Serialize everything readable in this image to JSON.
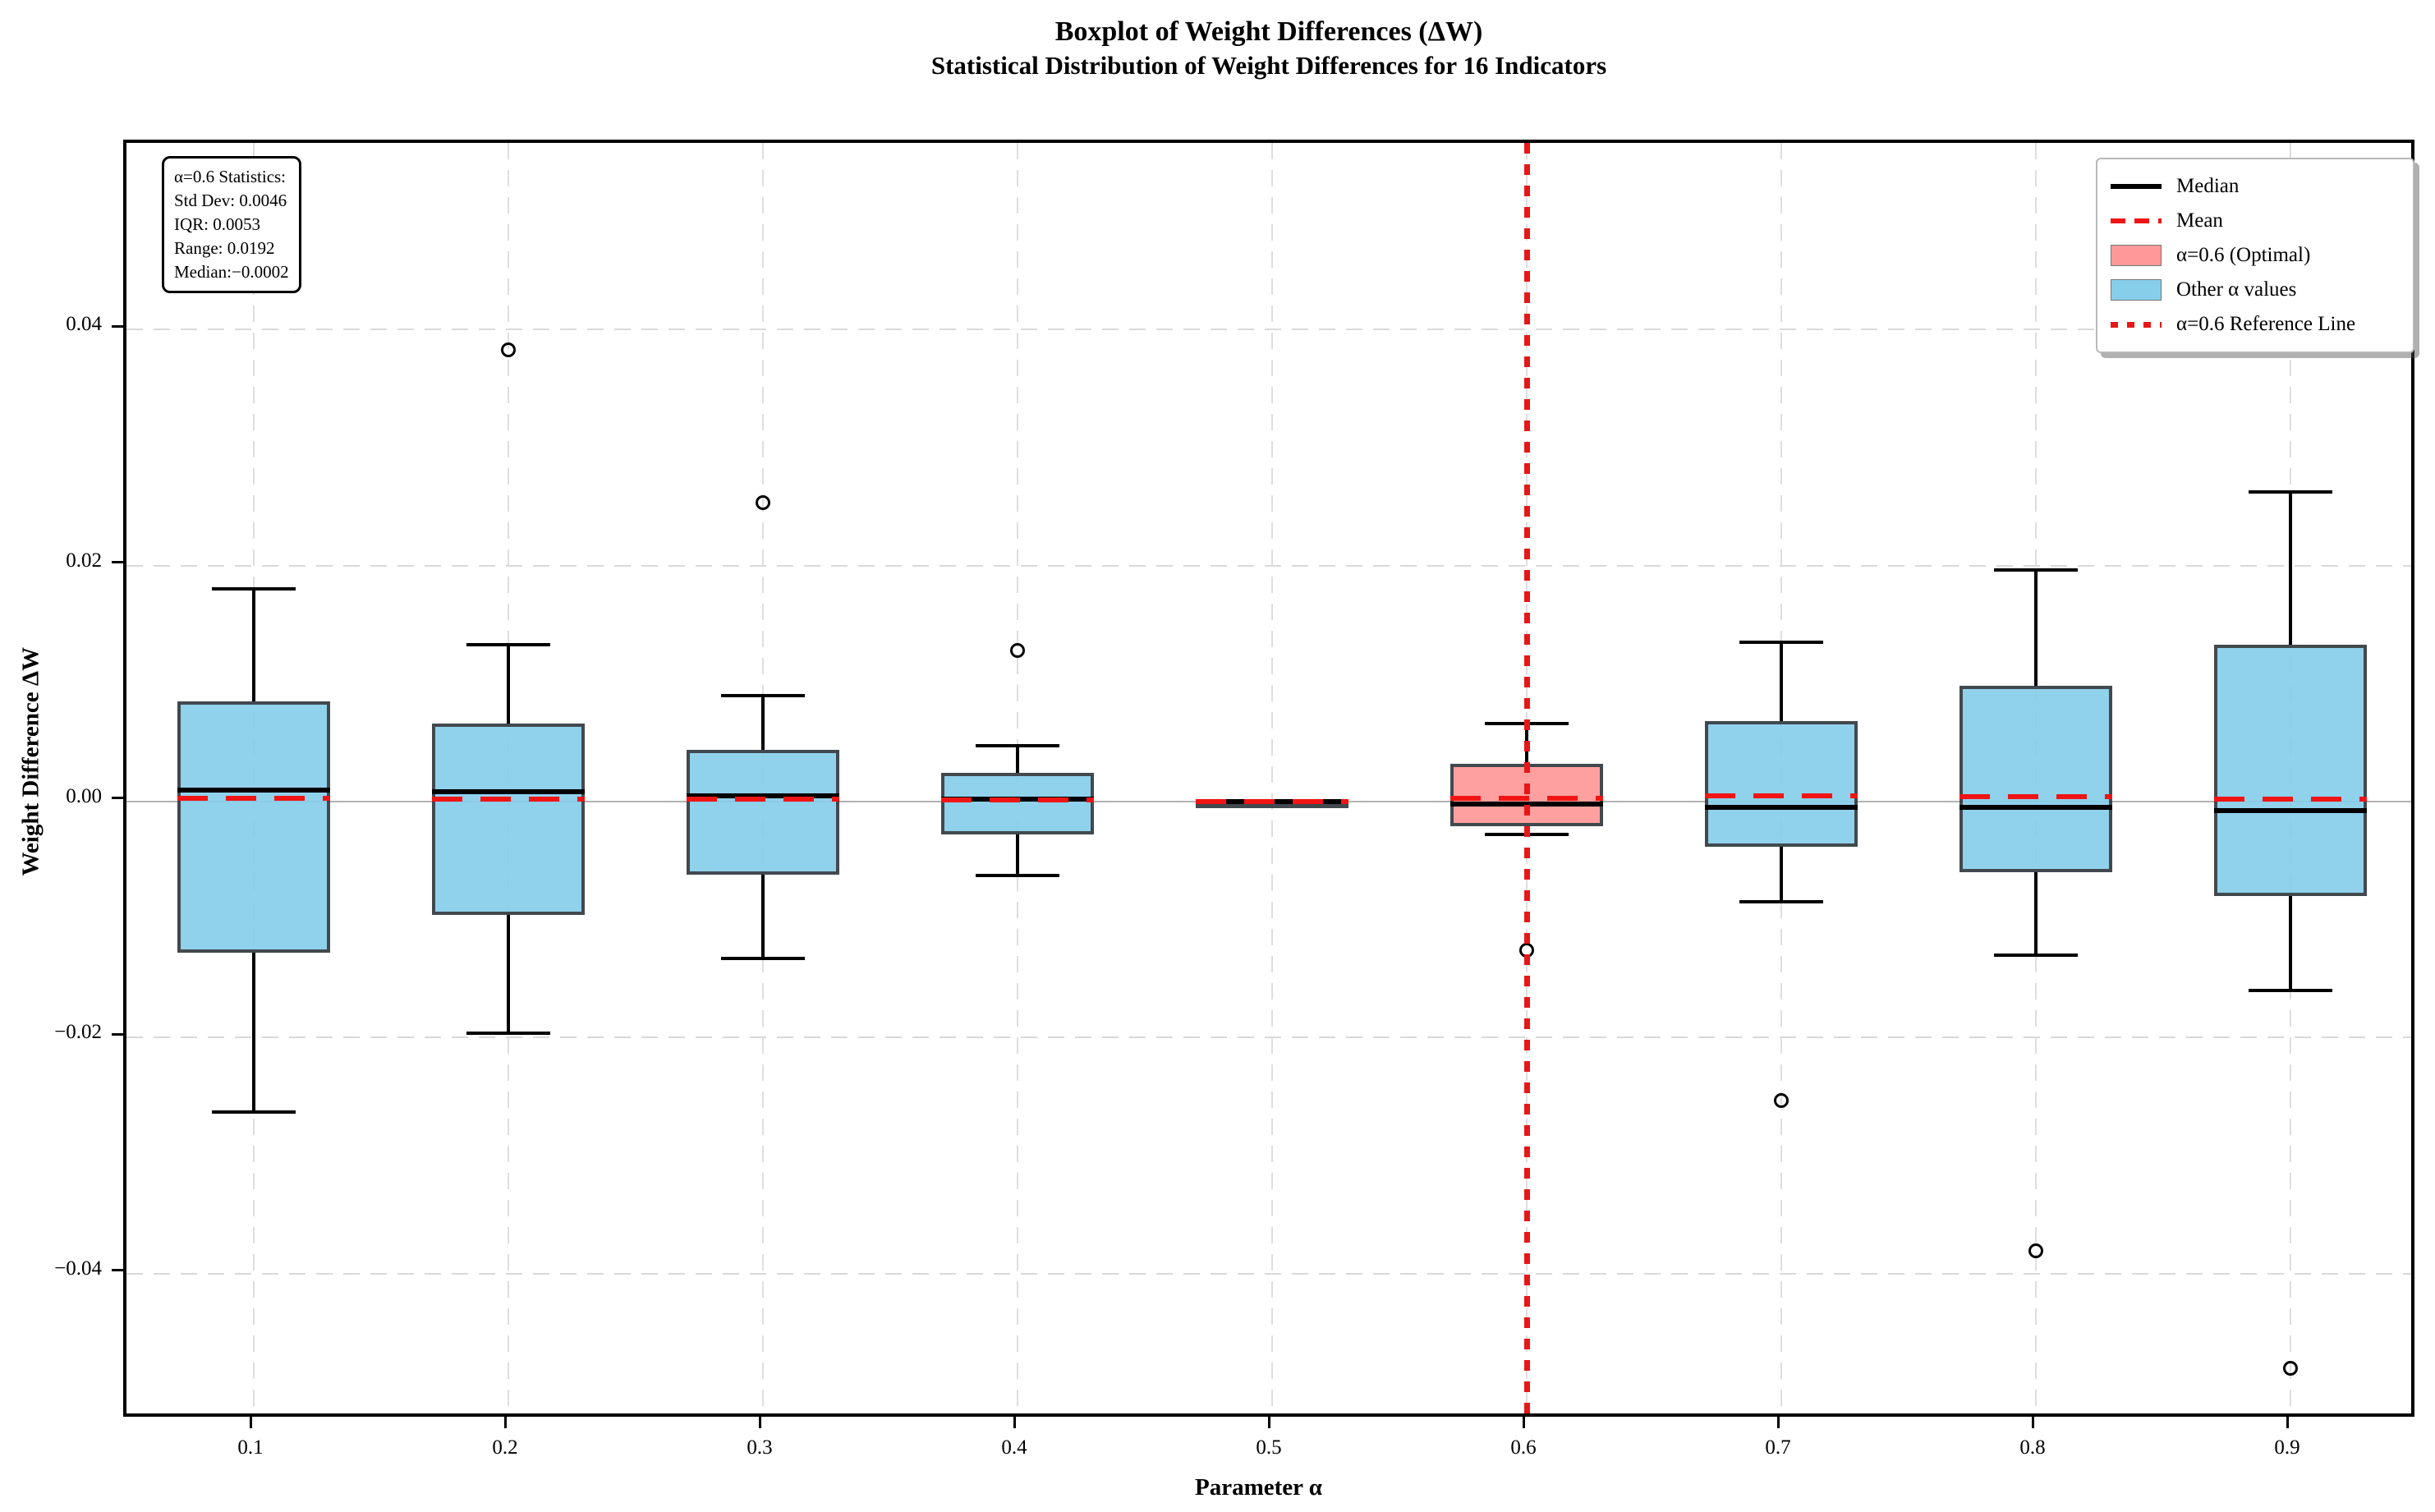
{
  "title": {
    "line1": "Boxplot of Weight Differences (ΔW)",
    "line2": "Statistical Distribution of Weight Differences for 16 Indicators"
  },
  "axes": {
    "xlabel": "Parameter α",
    "ylabel": "Weight Difference ΔW",
    "x_tick_labels": [
      "0.1",
      "0.2",
      "0.3",
      "0.4",
      "0.5",
      "0.6",
      "0.7",
      "0.8",
      "0.9"
    ],
    "y_tick_labels": [
      "0.04",
      "0.02",
      "0.00",
      "−0.02",
      "−0.04"
    ]
  },
  "stats_box": {
    "lines": [
      "α=0.6 Statistics:",
      "Std Dev: 0.0046",
      "IQR: 0.0053",
      "Range: 0.0192",
      "Median:−0.0002"
    ]
  },
  "legend": {
    "items": [
      {
        "label": "Median",
        "swatch": "line",
        "color": "#000000"
      },
      {
        "label": "Mean",
        "swatch": "dashed-line",
        "color": "#f01414"
      },
      {
        "label": "α=0.6 (Optimal)",
        "swatch": "patch",
        "color": "#ff9999"
      },
      {
        "label": "Other α values",
        "swatch": "patch",
        "color": "#87ceeb"
      },
      {
        "label": "α=0.6 Reference Line",
        "swatch": "dotted-line",
        "color": "#e81717"
      }
    ]
  },
  "chart_data": {
    "type": "boxplot",
    "title": "Boxplot of Weight Differences (ΔW)",
    "subtitle": "Statistical Distribution of Weight Differences for 16 Indicators",
    "xlabel": "Parameter α",
    "ylabel": "Weight Difference ΔW",
    "categories": [
      0.1,
      0.2,
      0.3,
      0.4,
      0.5,
      0.6,
      0.7,
      0.8,
      0.9
    ],
    "ylim": [
      -0.0524,
      0.0558
    ],
    "y_ticks": [
      0.04,
      0.02,
      0.0,
      -0.02,
      -0.04
    ],
    "grid": true,
    "zero_line": 0.0,
    "reference_line_x": 0.6,
    "legend_position": "upper right",
    "colors": {
      "optimal_fill": "#ff9999",
      "other_fill": "#87ceeb",
      "box_edge": "#333a40",
      "median": "#000000",
      "mean": "#f01414",
      "reference": "#e81717",
      "grid": "#d9d9d9",
      "zero": "#b3b3b3"
    },
    "boxes": [
      {
        "alpha": "0.1",
        "whisker_low": -0.0263,
        "q1": -0.0128,
        "median": 0.001,
        "q3": 0.0085,
        "whisker_high": 0.018,
        "mean": 0.0003,
        "outliers": [],
        "fill": "other"
      },
      {
        "alpha": "0.2",
        "whisker_low": -0.0196,
        "q1": -0.0096,
        "median": 0.0008,
        "q3": 0.0066,
        "whisker_high": 0.0133,
        "mean": 0.0002,
        "outliers": [
          0.0383
        ],
        "fill": "other"
      },
      {
        "alpha": "0.3",
        "whisker_low": -0.0133,
        "q1": -0.0062,
        "median": 0.0005,
        "q3": 0.0044,
        "whisker_high": 0.009,
        "mean": 0.0002,
        "outliers": [
          0.0253
        ],
        "fill": "other"
      },
      {
        "alpha": "0.4",
        "whisker_low": -0.0063,
        "q1": -0.0028,
        "median": 0.0002,
        "q3": 0.0024,
        "whisker_high": 0.0047,
        "mean": 0.0001,
        "outliers": [
          0.0128
        ],
        "fill": "other"
      },
      {
        "alpha": "0.5",
        "whisker_low": 0.0,
        "q1": 0.0,
        "median": 0.0,
        "q3": 0.0,
        "whisker_high": 0.0,
        "mean": 0.0,
        "outliers": [],
        "fill": "other"
      },
      {
        "alpha": "0.6",
        "whisker_low": -0.0028,
        "q1": -0.0021,
        "median": -0.0002,
        "q3": 0.0032,
        "whisker_high": 0.0066,
        "mean": 0.0003,
        "outliers": [
          -0.0126
        ],
        "fill": "optimal"
      },
      {
        "alpha": "0.7",
        "whisker_low": -0.0085,
        "q1": -0.0038,
        "median": -0.0005,
        "q3": 0.0068,
        "whisker_high": 0.0135,
        "mean": 0.0005,
        "outliers": [
          -0.0253
        ],
        "fill": "other"
      },
      {
        "alpha": "0.8",
        "whisker_low": -0.013,
        "q1": -0.006,
        "median": -0.0005,
        "q3": 0.0098,
        "whisker_high": 0.0196,
        "mean": 0.0004,
        "outliers": [
          -0.0381
        ],
        "fill": "other"
      },
      {
        "alpha": "0.9",
        "whisker_low": -0.016,
        "q1": -0.008,
        "median": -0.0008,
        "q3": 0.0133,
        "whisker_high": 0.0262,
        "mean": 0.0002,
        "outliers": [
          -0.048
        ],
        "fill": "other"
      }
    ]
  }
}
